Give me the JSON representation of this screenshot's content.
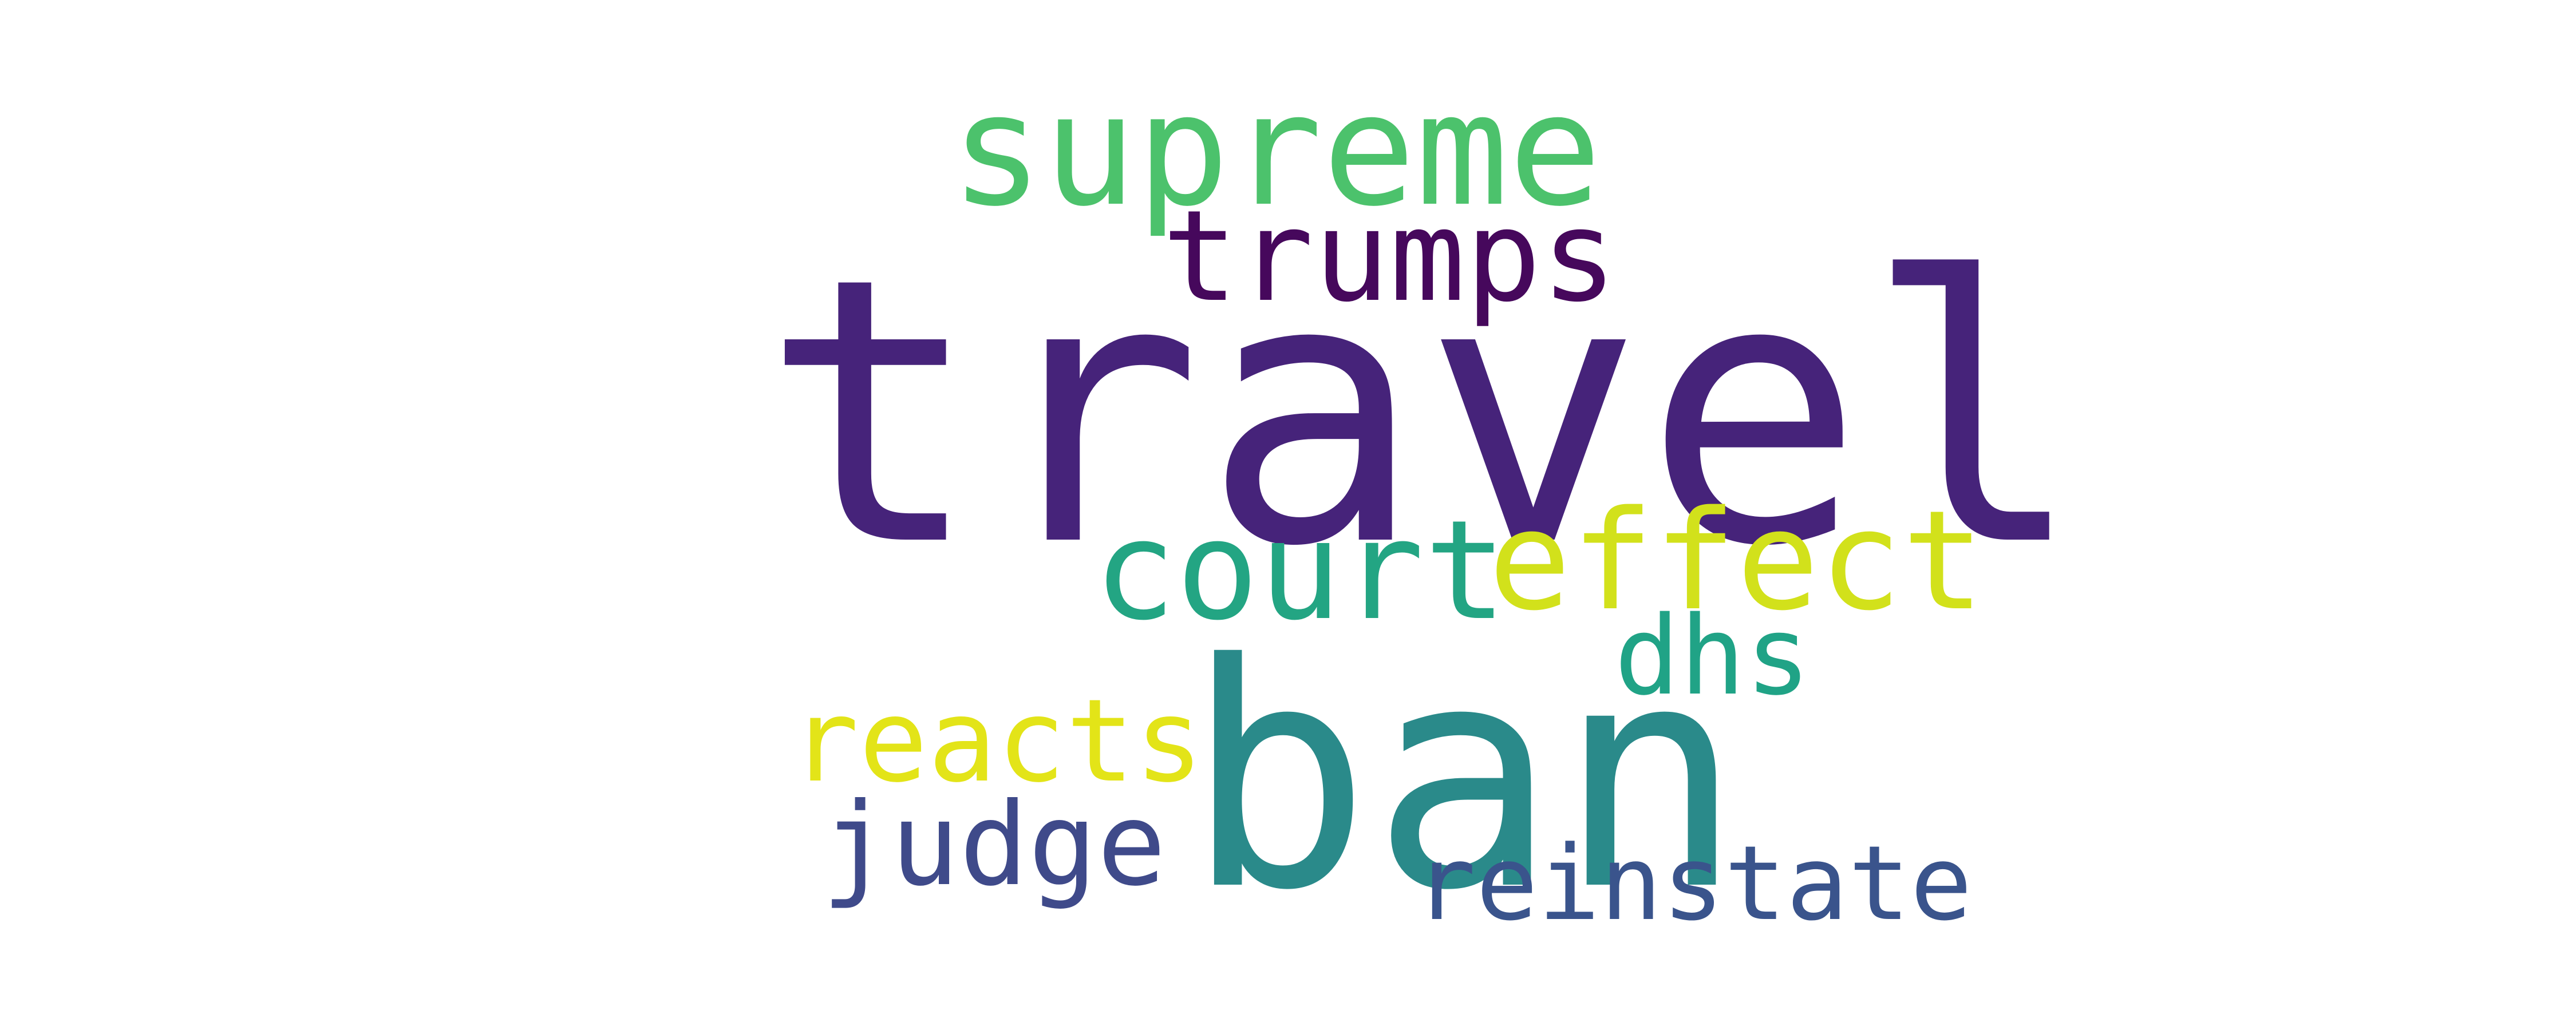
{
  "words": {
    "travel": {
      "text": "travel",
      "color": "#46237a"
    },
    "ban": {
      "text": "ban",
      "color": "#2a8a8a"
    },
    "supreme": {
      "text": "supreme",
      "color": "#4cc26c"
    },
    "trumps": {
      "text": "trumps",
      "color": "#46085c"
    },
    "court": {
      "text": "court",
      "color": "#23a583"
    },
    "effect": {
      "text": "effect",
      "color": "#d2e11b"
    },
    "dhs": {
      "text": "dhs",
      "color": "#20a386"
    },
    "reacts": {
      "text": "reacts",
      "color": "#e3e418"
    },
    "judge": {
      "text": "judge",
      "color": "#3f4a8a"
    },
    "reinstate": {
      "text": "reinstate",
      "color": "#3a548c"
    }
  }
}
